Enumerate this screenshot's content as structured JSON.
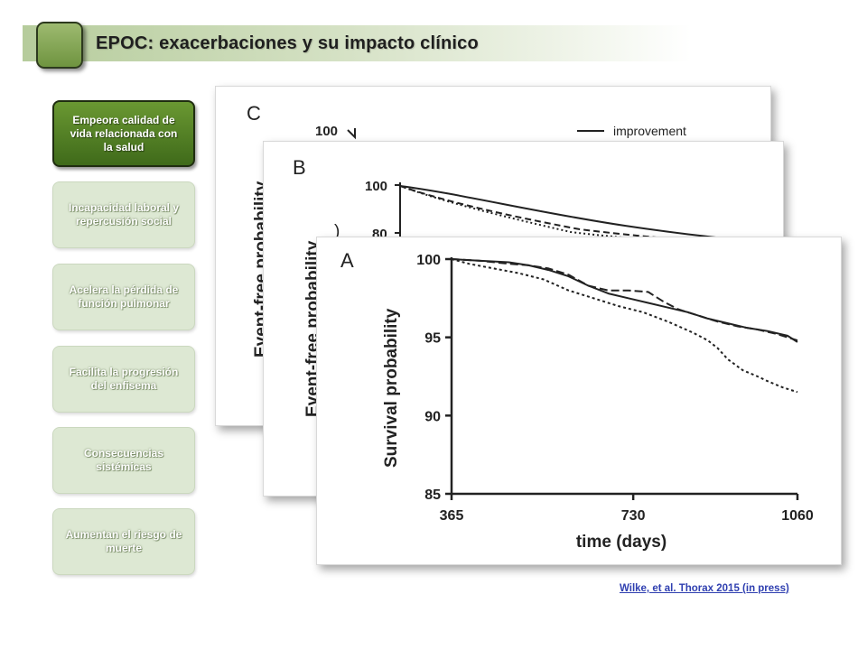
{
  "header": {
    "title": "EPOC: exacerbaciones y su impacto clínico",
    "accent_color": "#7a9b4c"
  },
  "sidebar": {
    "items": [
      {
        "label": "Empeora calidad de vida relacionada con la salud",
        "active": true
      },
      {
        "label": "Incapacidad laboral y repercusión social",
        "active": false
      },
      {
        "label": "Acelera la pérdida de función pulmonar",
        "active": false
      },
      {
        "label": "Facilita la progresión del enfisema",
        "active": false
      },
      {
        "label": "Consecuencias sistémicas",
        "active": false
      },
      {
        "label": "Aumentan el riesgo de muerte",
        "active": false
      }
    ]
  },
  "panels": {
    "c": {
      "letter": "C",
      "ylabel": "Event-free probability",
      "top_tick": "100",
      "legend_label": "improvement"
    },
    "b": {
      "letter": "B",
      "ylabel": "Event-free probability",
      "top_tick": "100",
      "second_tick": "80"
    },
    "a": {
      "letter": "A"
    }
  },
  "chart_data": {
    "type": "line",
    "panel": "A",
    "xlabel": "time (days)",
    "ylabel": "Survival probability",
    "xlim": [
      365,
      1060
    ],
    "ylim": [
      85,
      100
    ],
    "xticks": [
      365,
      730,
      1060
    ],
    "yticks": [
      100,
      95,
      90,
      85
    ],
    "series": [
      {
        "style": "solid",
        "x": [
          365,
          420,
          480,
          520,
          560,
          600,
          640,
          680,
          720,
          760,
          800,
          840,
          880,
          920,
          960,
          1000,
          1040,
          1060
        ],
        "y": [
          100,
          99.9,
          99.8,
          99.6,
          99.3,
          98.9,
          98.3,
          97.8,
          97.5,
          97.2,
          96.9,
          96.6,
          96.2,
          95.9,
          95.6,
          95.4,
          95.1,
          94.7
        ]
      },
      {
        "style": "dashed",
        "x": [
          365,
          420,
          480,
          520,
          560,
          600,
          640,
          680,
          720,
          760,
          790,
          820,
          860,
          900,
          940,
          980,
          1020,
          1060
        ],
        "y": [
          100,
          99.9,
          99.7,
          99.6,
          99.4,
          99.0,
          98.3,
          98.0,
          98.0,
          97.9,
          97.3,
          96.8,
          96.4,
          96.0,
          95.7,
          95.5,
          95.2,
          94.8
        ]
      },
      {
        "style": "dotted",
        "x": [
          365,
          400,
          450,
          500,
          550,
          600,
          650,
          700,
          750,
          800,
          850,
          880,
          900,
          920,
          950,
          980,
          1000,
          1030,
          1060
        ],
        "y": [
          100,
          99.7,
          99.4,
          99.1,
          98.7,
          98.0,
          97.5,
          97.0,
          96.6,
          96.0,
          95.3,
          94.8,
          94.3,
          93.6,
          92.9,
          92.5,
          92.2,
          91.8,
          91.5
        ]
      }
    ]
  },
  "citation": {
    "text": "Wilke, et al. Thorax 2015 (in press)"
  }
}
